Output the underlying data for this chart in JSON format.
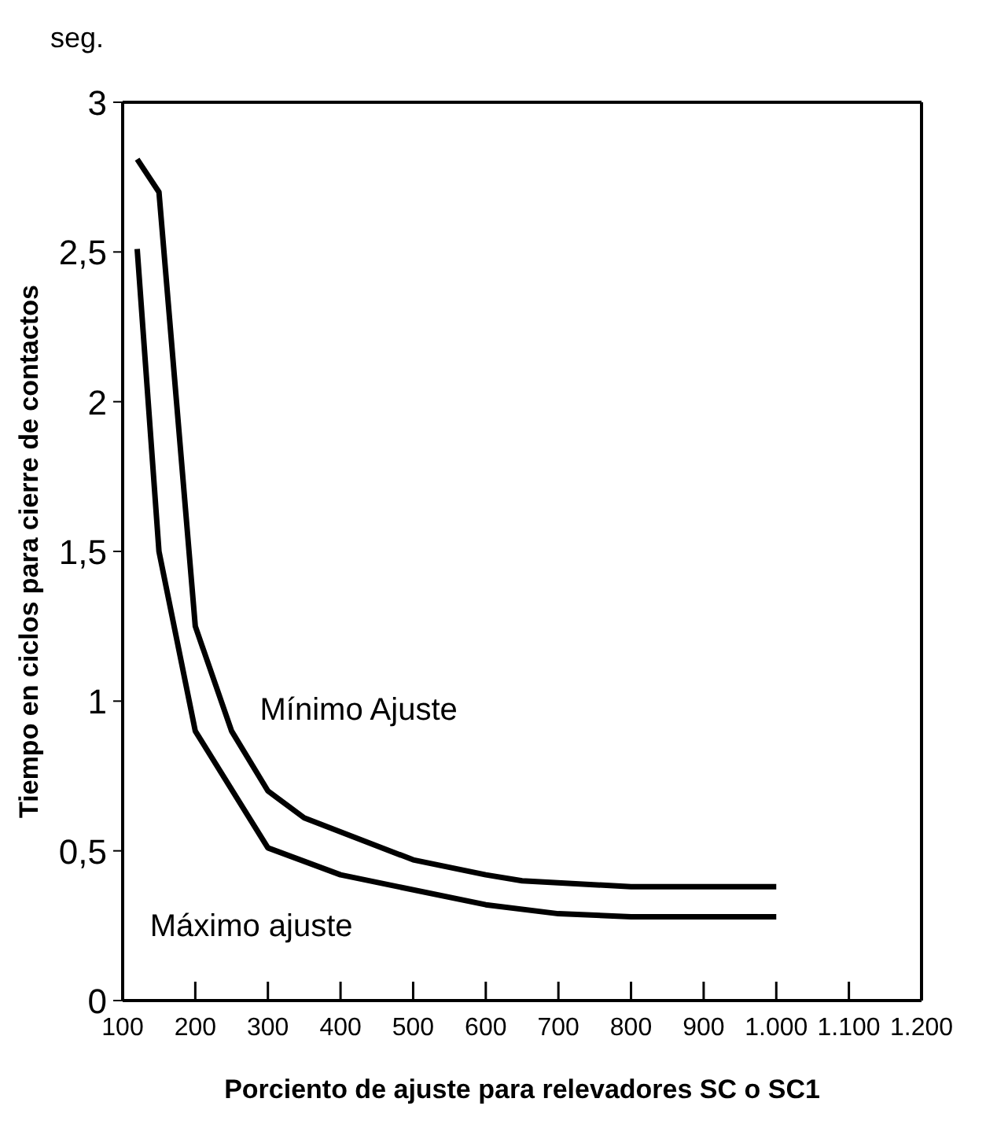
{
  "chart_data": {
    "type": "line",
    "xlabel": "Porciento de ajuste para relevadores SC o SC1",
    "ylabel": "Tiempo en ciclos para cierre de contactos",
    "annotations": [
      "seg."
    ],
    "xlim": [
      100,
      1200
    ],
    "xticks": [
      100,
      200,
      300,
      400,
      500,
      600,
      700,
      800,
      900,
      {
        "value": 1000,
        "label": "1.000"
      },
      {
        "value": 1100,
        "label": "1.100"
      },
      {
        "value": 1200,
        "label": "1.200"
      }
    ],
    "ylim": [
      0,
      3
    ],
    "yticks": [
      0,
      {
        "value": 0.5,
        "label": "0,5"
      },
      1,
      {
        "value": 1.5,
        "label": "1,5"
      },
      2,
      {
        "value": 2.5,
        "label": "2,5"
      },
      3
    ],
    "grid": false,
    "legend": false,
    "marker": "none",
    "line_style": "solid",
    "series": [
      {
        "name": "Mínimo Ajuste",
        "color": "#000000",
        "x": [
          120,
          150,
          200,
          250,
          300,
          350,
          500,
          600,
          650,
          800,
          1000
        ],
        "values": [
          2.81,
          2.7,
          1.25,
          0.9,
          0.7,
          0.61,
          0.47,
          0.42,
          0.4,
          0.38,
          0.38
        ]
      },
      {
        "name": "Máximo ajuste",
        "color": "#000000",
        "x": [
          120,
          150,
          200,
          300,
          400,
          600,
          700,
          800,
          1000
        ],
        "values": [
          2.51,
          1.5,
          0.9,
          0.51,
          0.42,
          0.32,
          0.29,
          0.28,
          0.28
        ]
      }
    ]
  }
}
